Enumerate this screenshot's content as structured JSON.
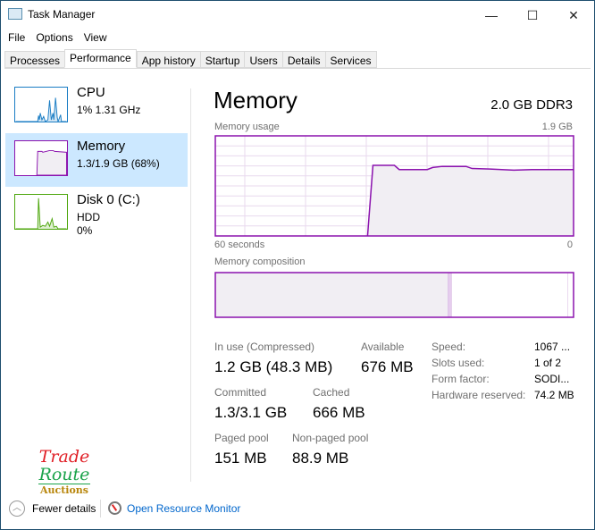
{
  "window": {
    "title": "Task Manager",
    "minimize": "—",
    "maximize": "☐",
    "close": "✕"
  },
  "menu": [
    "File",
    "Options",
    "View"
  ],
  "tabs": [
    "Processes",
    "Performance",
    "App history",
    "Startup",
    "Users",
    "Details",
    "Services"
  ],
  "active_tab": "Performance",
  "sidebar": [
    {
      "name": "CPU",
      "line1": "1% 1.31 GHz",
      "color": "#1a7dc4"
    },
    {
      "name": "Memory",
      "line1": "1.3/1.9 GB (68%)",
      "color": "#8b12ae"
    },
    {
      "name": "Disk 0 (C:)",
      "line1": "HDD",
      "line2": "0%",
      "color": "#4da60c"
    }
  ],
  "main": {
    "title": "Memory",
    "spec": "2.0 GB DDR3",
    "usage_label": "Memory usage",
    "usage_max": "1.9 GB",
    "time_left": "60 seconds",
    "time_right": "0",
    "composition_label": "Memory composition",
    "stats": {
      "in_use_label": "In use (Compressed)",
      "in_use": "1.2 GB (48.3 MB)",
      "available_label": "Available",
      "available": "676 MB",
      "committed_label": "Committed",
      "committed": "1.3/3.1 GB",
      "cached_label": "Cached",
      "cached": "666 MB",
      "paged_label": "Paged pool",
      "paged": "151 MB",
      "nonpaged_label": "Non-paged pool",
      "nonpaged": "88.9 MB"
    },
    "details": [
      {
        "k": "Speed:",
        "v": "1067 ..."
      },
      {
        "k": "Slots used:",
        "v": "1 of 2"
      },
      {
        "k": "Form factor:",
        "v": "SODI..."
      },
      {
        "k": "Hardware reserved:",
        "v": "74.2 MB"
      }
    ]
  },
  "chart_data": {
    "type": "area",
    "ylim": [
      0,
      1.9
    ],
    "xlim": [
      60,
      0
    ],
    "ylabel": "Memory usage",
    "y_unit": "GB",
    "x": [
      60,
      34.5,
      33.6,
      30,
      29.2,
      24.5,
      23.6,
      22,
      18,
      17,
      14,
      10,
      7,
      0
    ],
    "values": [
      0,
      0,
      1.34,
      1.34,
      1.26,
      1.26,
      1.3,
      1.32,
      1.32,
      1.28,
      1.27,
      1.25,
      1.26,
      1.26
    ],
    "color": "#8b12ae",
    "composition": {
      "in_use_pct": 65,
      "modified_pct": 1,
      "standby_pct": 32.5,
      "free_pct": 1.5
    }
  },
  "footer": {
    "fewer": "Fewer details",
    "monitor": "Open Resource Monitor"
  },
  "logo": {
    "line1": "Trade",
    "line2": "Route",
    "line3": "Auctions"
  }
}
